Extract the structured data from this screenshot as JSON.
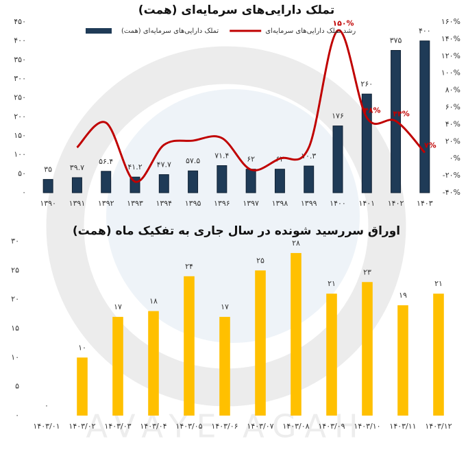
{
  "watermark": "AVAYE AGAH",
  "chart_data": [
    {
      "type": "bar",
      "title": "تملک دارایی‌های سرمایه‌ای (همت)",
      "categories": [
        "۱۳۹۰",
        "۱۳۹۱",
        "۱۳۹۲",
        "۱۳۹۳",
        "۱۳۹۴",
        "۱۳۹۵",
        "۱۳۹۶",
        "۱۳۹۷",
        "۱۳۹۸",
        "۱۳۹۹",
        "۱۴۰۰",
        "۱۴۰۱",
        "۱۴۰۲",
        "۱۴۰۳"
      ],
      "series": [
        {
          "name": "تملک دارایی‌های سرمایه‌ای (همت)",
          "type": "bar",
          "color": "#1f3b57",
          "values": [
            35,
            39.7,
            56.4,
            41.2,
            47.7,
            57.5,
            71.4,
            62,
            62,
            70.3,
            176,
            260,
            375,
            400
          ],
          "value_labels": [
            "۳۵",
            "۳۹.۷",
            "۵۶.۴",
            "۴۱.۲",
            "۴۷.۷",
            "۵۷.۵",
            "۷۱.۴",
            "۶۲",
            "۶۲",
            "۷۰.۳",
            "۱۷۶",
            "۲۶۰",
            "۳۷۵",
            "۴۰۰"
          ]
        },
        {
          "name": "رشد تملک دارایی‌های سرمایه‌ای",
          "type": "line",
          "axis": "y2",
          "color": "#c00000",
          "values": [
            null,
            13,
            42,
            -27,
            16,
            21,
            24,
            -13,
            0,
            13,
            150,
            48,
            44,
            7
          ],
          "value_labels": [
            null,
            null,
            null,
            null,
            null,
            null,
            null,
            null,
            null,
            null,
            "۱۵۰%",
            "۴۸%",
            "۴۴%",
            "۷%"
          ]
        }
      ],
      "ylim": [
        0,
        450
      ],
      "yticks": [
        {
          "value": 0,
          "label": "۰"
        },
        {
          "value": 50,
          "label": "۵۰"
        },
        {
          "value": 100,
          "label": "۱۰۰"
        },
        {
          "value": 150,
          "label": "۱۵۰"
        },
        {
          "value": 200,
          "label": "۲۰۰"
        },
        {
          "value": 250,
          "label": "۲۵۰"
        },
        {
          "value": 300,
          "label": "۳۰۰"
        },
        {
          "value": 350,
          "label": "۳۵۰"
        },
        {
          "value": 400,
          "label": "۴۰۰"
        },
        {
          "value": 450,
          "label": "۴۵۰"
        }
      ],
      "y2lim": [
        -40,
        160
      ],
      "y2ticks": [
        {
          "value": -40,
          "label": "-۴۰%"
        },
        {
          "value": -20,
          "label": "-۲۰%"
        },
        {
          "value": 0,
          "label": "۰%"
        },
        {
          "value": 20,
          "label": "۲۰%"
        },
        {
          "value": 40,
          "label": "۴۰%"
        },
        {
          "value": 60,
          "label": "۶۰%"
        },
        {
          "value": 80,
          "label": "۸۰%"
        },
        {
          "value": 100,
          "label": "۱۰۰%"
        },
        {
          "value": 120,
          "label": "۱۲۰%"
        },
        {
          "value": 140,
          "label": "۱۴۰%"
        },
        {
          "value": 160,
          "label": "۱۶۰%"
        }
      ],
      "legend": "top"
    },
    {
      "type": "bar",
      "title": "اوراق سررسید شونده در سال جاری به تفکیک ماه (همت)",
      "categories": [
        "۱۴۰۳/۰۱",
        "۱۴۰۳/۰۲",
        "۱۴۰۳/۰۳",
        "۱۴۰۳/۰۴",
        "۱۴۰۳/۰۵",
        "۱۴۰۳/۰۶",
        "۱۴۰۳/۰۷",
        "۱۴۰۳/۰۸",
        "۱۴۰۳/۰۹",
        "۱۴۰۳/۱۰",
        "۱۴۰۳/۱۱",
        "۱۴۰۳/۱۲"
      ],
      "values": [
        0,
        10,
        17,
        18,
        24,
        17,
        25,
        28,
        21,
        23,
        19,
        21
      ],
      "value_labels": [
        "۰",
        "۱۰",
        "۱۷",
        "۱۸",
        "۲۴",
        "۱۷",
        "۲۵",
        "۲۸",
        "۲۱",
        "۲۳",
        "۱۹",
        "۲۱"
      ],
      "color": "#ffc000",
      "ylim": [
        0,
        30
      ],
      "yticks": [
        {
          "value": 0,
          "label": "۰"
        },
        {
          "value": 5,
          "label": "۵"
        },
        {
          "value": 10,
          "label": "۱۰"
        },
        {
          "value": 15,
          "label": "۱۵"
        },
        {
          "value": 20,
          "label": "۲۰"
        },
        {
          "value": 25,
          "label": "۲۵"
        },
        {
          "value": 30,
          "label": "۳۰"
        }
      ]
    }
  ]
}
